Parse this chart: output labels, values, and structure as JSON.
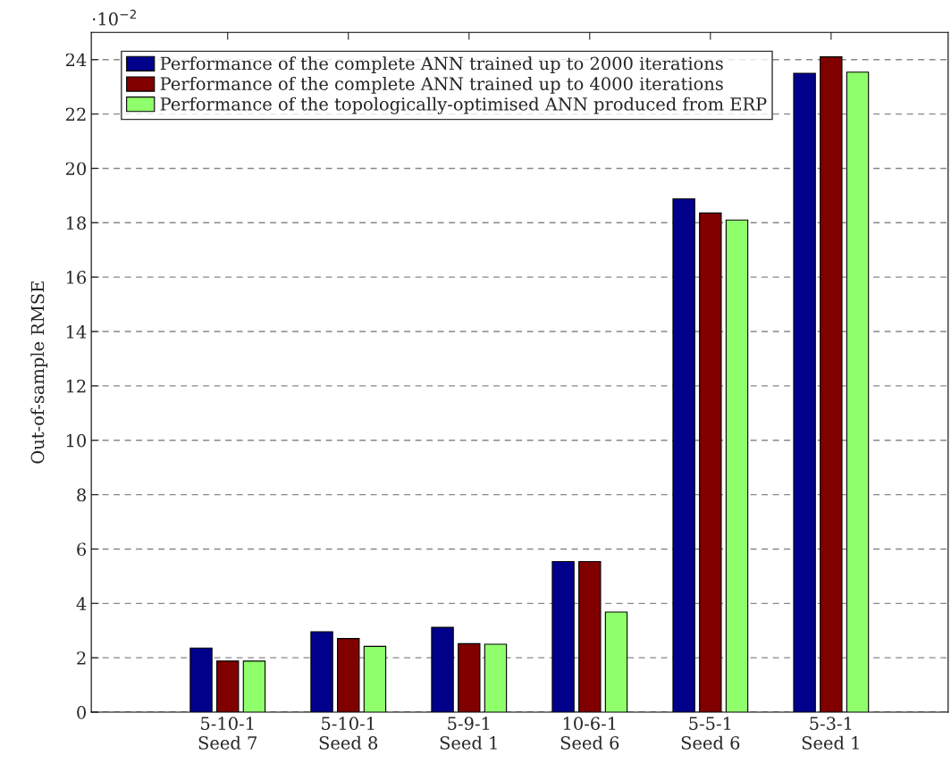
{
  "chart_data": {
    "type": "bar",
    "ylabel": "Out-of-sample RMSE",
    "categories": [
      "5-10-1\nSeed 7",
      "5-10-1\nSeed 8",
      "5-9-1\nSeed 1",
      "10-6-1\nSeed 6",
      "5-5-1\nSeed 6",
      "5-3-1\nSeed 1"
    ],
    "series": [
      {
        "name": "Performance of the complete ANN trained up to 2000 iterations",
        "color": "#00008b",
        "values": [
          2.36,
          2.96,
          3.12,
          5.54,
          18.88,
          23.5
        ]
      },
      {
        "name": "Performance of the complete ANN trained up to 4000 iterations",
        "color": "#800000",
        "values": [
          1.88,
          2.71,
          2.52,
          5.54,
          18.36,
          24.1
        ]
      },
      {
        "name": "Performance of the topologically-optimised ANN produced from ERP",
        "color": "#90ff6c",
        "values": [
          1.88,
          2.42,
          2.5,
          3.68,
          18.1,
          23.54
        ]
      }
    ],
    "ylim": [
      0,
      25
    ],
    "yticks": [
      0,
      2,
      4,
      6,
      8,
      10,
      12,
      14,
      16,
      18,
      20,
      22,
      24
    ],
    "annotations": [
      "·10$^{−2}$"
    ],
    "grid": "y",
    "legend": "top left"
  }
}
